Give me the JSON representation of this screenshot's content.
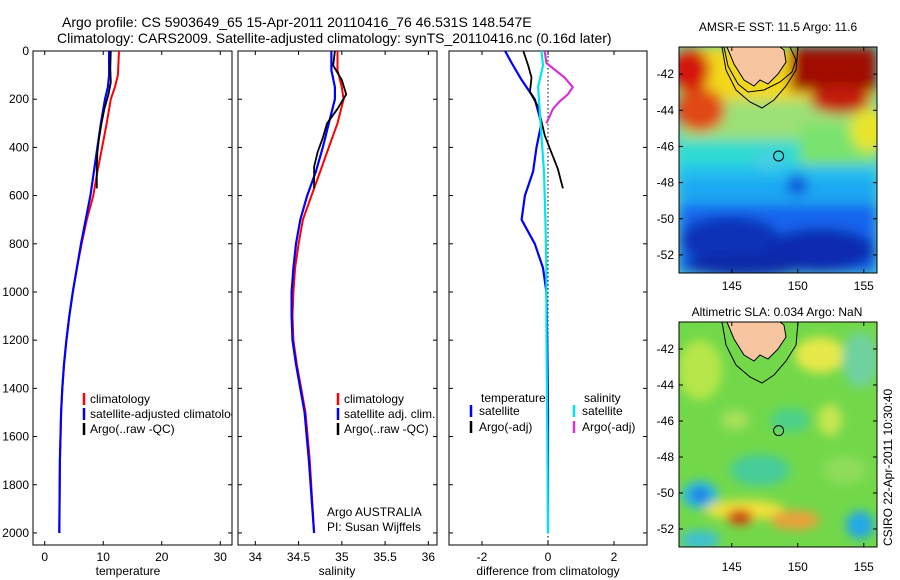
{
  "header": {
    "line1": "Argo profile: CS 5903649_65 15-Apr-2011 20110416_76 46.531S 148.547E",
    "line2": "Climatology: CARS2009. Satellite-adjusted climatology: synTS_20110416.nc (0.16d later)"
  },
  "footer": {
    "credit_line1": "Argo AUSTRALIA",
    "credit_line2": "PI: Susan Wijffels",
    "stamp": "CSIRO 22-Apr-2011 10:30:40"
  },
  "colors": {
    "climatology": "#ff0000",
    "satellite": "#0000ff",
    "argo": "#000000",
    "satellite_salinity": "#00e5ee",
    "argo_salinity_adj": "#d633d6",
    "land": "#f7c6a0"
  },
  "chart_data": [
    {
      "type": "line",
      "panel": "temperature",
      "xlabel": "temperature",
      "ylabel": "",
      "xlim": [
        -2,
        32
      ],
      "ylim": [
        2050,
        0
      ],
      "xticks": [
        0,
        10,
        20,
        30
      ],
      "yticks": [
        0,
        200,
        400,
        600,
        800,
        1000,
        1200,
        1400,
        1600,
        1800,
        2000
      ],
      "series": [
        {
          "name": "climatology",
          "color": "#ff0000",
          "x": [
            12.7,
            12.5,
            12.0,
            11.3,
            10.6,
            9.8,
            9.0,
            8.3,
            7.2,
            6.3,
            5.5,
            4.8,
            4.2,
            3.7,
            3.3,
            3.0,
            2.8,
            2.6,
            2.5
          ],
          "y": [
            0,
            100,
            150,
            200,
            300,
            400,
            500,
            600,
            700,
            800,
            900,
            1000,
            1100,
            1200,
            1300,
            1400,
            1500,
            1700,
            2000
          ]
        },
        {
          "name": "satellite-adjusted climatology",
          "color": "#0000ff",
          "x": [
            11.0,
            11.0,
            10.8,
            10.3,
            9.6,
            9.0,
            8.4,
            7.8,
            7.0,
            6.2,
            5.5,
            4.8,
            4.2,
            3.7,
            3.3,
            3.0,
            2.8,
            2.6,
            2.5
          ],
          "y": [
            0,
            100,
            150,
            200,
            300,
            400,
            500,
            600,
            700,
            800,
            900,
            1000,
            1100,
            1200,
            1300,
            1400,
            1500,
            1700,
            2000
          ]
        },
        {
          "name": "Argo(..raw -QC)",
          "color": "#000000",
          "x": [
            11.3,
            11.2,
            11.3,
            10.9,
            10.2,
            9.7,
            9.3,
            9.0,
            8.9,
            8.9
          ],
          "y": [
            0,
            70,
            130,
            180,
            240,
            300,
            360,
            420,
            480,
            570
          ]
        }
      ]
    },
    {
      "type": "line",
      "panel": "salinity",
      "xlabel": "salinity",
      "ylabel": "",
      "xlim": [
        33.8,
        36.1
      ],
      "ylim": [
        2050,
        0
      ],
      "xticks": [
        34,
        34.5,
        35,
        35.5,
        36
      ],
      "series": [
        {
          "name": "climatology",
          "color": "#ff0000",
          "x": [
            34.95,
            34.95,
            35.0,
            35.02,
            34.95,
            34.85,
            34.75,
            34.65,
            34.55,
            34.5,
            34.46,
            34.44,
            34.43,
            34.44,
            34.48,
            34.53,
            34.58,
            34.63,
            34.68
          ],
          "y": [
            0,
            80,
            150,
            200,
            300,
            400,
            500,
            600,
            700,
            800,
            900,
            1000,
            1100,
            1200,
            1300,
            1400,
            1500,
            1700,
            2000
          ]
        },
        {
          "name": "satellite adj. clim.",
          "color": "#0000ff",
          "x": [
            34.88,
            34.88,
            34.92,
            34.92,
            34.85,
            34.78,
            34.7,
            34.6,
            34.52,
            34.47,
            34.44,
            34.42,
            34.42,
            34.43,
            34.47,
            34.52,
            34.57,
            34.62,
            34.68
          ],
          "y": [
            0,
            80,
            150,
            200,
            300,
            400,
            500,
            600,
            700,
            800,
            900,
            1000,
            1100,
            1200,
            1300,
            1400,
            1500,
            1700,
            2000
          ]
        },
        {
          "name": "Argo(..raw -QC)",
          "color": "#000000",
          "x": [
            34.92,
            34.9,
            35.0,
            35.05,
            34.95,
            34.83,
            34.78,
            34.72,
            34.68,
            34.68
          ],
          "y": [
            0,
            60,
            120,
            180,
            240,
            300,
            360,
            420,
            480,
            570
          ]
        }
      ]
    },
    {
      "type": "line",
      "panel": "difference",
      "xlabel": "difference from climatology",
      "ylabel": "",
      "xlim": [
        -3,
        3
      ],
      "ylim": [
        2050,
        0
      ],
      "xticks": [
        -2,
        0,
        2
      ],
      "legend_titles": [
        "temperature",
        "salinity"
      ],
      "series": [
        {
          "name": "satellite",
          "group": "temperature",
          "color": "#0000ff",
          "x": [
            -1.3,
            -1.1,
            -0.8,
            -0.6,
            -0.4,
            -0.3,
            -0.2,
            -0.35,
            -0.45,
            -0.7,
            -0.8,
            -0.4,
            -0.15,
            -0.05,
            -0.02,
            0.0,
            0.0
          ],
          "y": [
            0,
            50,
            120,
            160,
            200,
            250,
            300,
            400,
            500,
            600,
            700,
            800,
            900,
            1000,
            1200,
            1500,
            2000
          ]
        },
        {
          "name": "Argo(-adj)",
          "group": "temperature",
          "color": "#000000",
          "x": [
            -0.75,
            -0.6,
            -0.5,
            -0.55,
            -0.3,
            -0.2,
            -0.1,
            0.1,
            0.3,
            0.45
          ],
          "y": [
            0,
            60,
            110,
            170,
            230,
            290,
            350,
            420,
            490,
            570
          ]
        },
        {
          "name": "satellite",
          "group": "salinity",
          "color": "#00e5ee",
          "x": [
            -0.2,
            -0.15,
            -0.3,
            -0.25,
            -0.2,
            -0.12,
            -0.08,
            -0.05,
            -0.05,
            -0.04,
            -0.02,
            0.0
          ],
          "y": [
            0,
            60,
            150,
            250,
            350,
            500,
            700,
            900,
            1100,
            1300,
            1600,
            2000
          ]
        },
        {
          "name": "Argo(-adj)",
          "group": "salinity",
          "color": "#d633d6",
          "x": [
            -0.1,
            -0.05,
            0.5,
            0.75,
            0.6,
            0.35,
            0.15,
            -0.05
          ],
          "y": [
            0,
            50,
            110,
            150,
            180,
            210,
            240,
            300
          ]
        }
      ]
    },
    {
      "type": "heatmap",
      "panel": "sst_map",
      "title": "AMSR-E SST: 11.5 Argo: 11.6",
      "xlim": [
        141,
        156
      ],
      "ylim": [
        -53,
        -40.5
      ],
      "xticks": [
        145,
        150,
        155
      ],
      "yticks": [
        -42,
        -44,
        -46,
        -48,
        -50,
        -52
      ],
      "float_position": {
        "lon": 148.547,
        "lat": -46.531
      }
    },
    {
      "type": "heatmap",
      "panel": "sla_map",
      "title": "Altimetric SLA: 0.034 Argo: NaN",
      "xlim": [
        141,
        156
      ],
      "ylim": [
        -53,
        -40.5
      ],
      "xticks": [
        145,
        150,
        155
      ],
      "yticks": [
        -42,
        -44,
        -46,
        -48,
        -50,
        -52
      ],
      "float_position": {
        "lon": 148.547,
        "lat": -46.531
      }
    }
  ]
}
